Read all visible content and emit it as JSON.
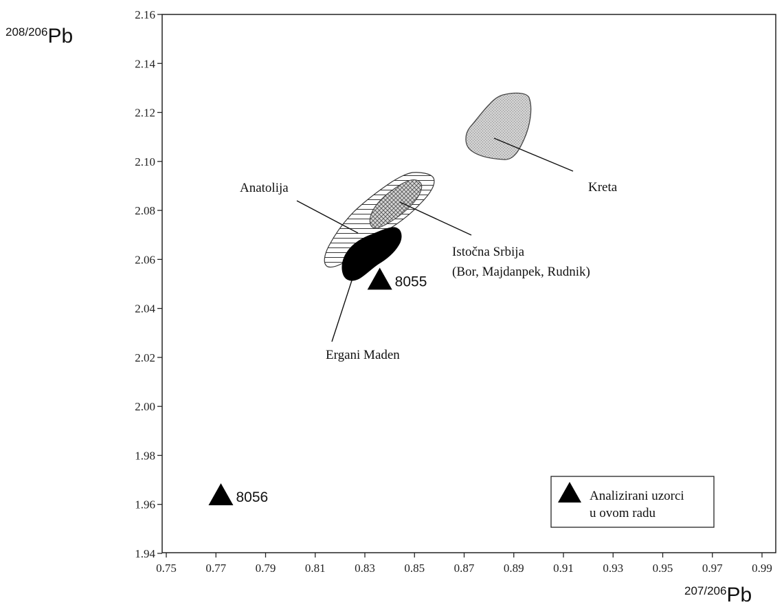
{
  "chart_data": {
    "type": "scatter",
    "title": "",
    "xlabel": {
      "sup": "207/206",
      "main": "Pb"
    },
    "ylabel": {
      "sup": "208/206",
      "main": "Pb"
    },
    "xlim": [
      0.75,
      1.0
    ],
    "ylim": [
      1.94,
      2.16
    ],
    "x_ticks": [
      "0.75",
      "0.77",
      "0.79",
      "0.81",
      "0.83",
      "0.85",
      "0.87",
      "0.89",
      "0.91",
      "0.93",
      "0.95",
      "0.97",
      "0.99"
    ],
    "y_ticks": [
      "1.94",
      "1.96",
      "1.98",
      "2.00",
      "2.02",
      "2.04",
      "2.06",
      "2.08",
      "2.10",
      "2.12",
      "2.14",
      "2.16"
    ],
    "grid": false,
    "points": [
      {
        "label": "8055",
        "x": 0.836,
        "y": 2.051
      },
      {
        "label": "8056",
        "x": 0.772,
        "y": 1.963
      }
    ],
    "fields": [
      {
        "name": "Kreta",
        "fill": "stipple-grey",
        "label_lines": [
          "Kreta"
        ]
      },
      {
        "name": "Anatolija",
        "fill": "horizontal-hatch",
        "label_lines": [
          "Anatolija"
        ]
      },
      {
        "name": "Istočna Srbija",
        "fill": "cross-hatch",
        "label_lines": [
          "Istočna Srbija",
          "(Bor, Majdanpek, Rudnik)"
        ]
      },
      {
        "name": "Ergani Maden",
        "fill": "solid-black",
        "label_lines": [
          "Ergani Maden"
        ]
      }
    ],
    "legend": {
      "position": "bottom-right",
      "marker": "filled-triangle",
      "lines": [
        "Analizirani uzorci",
        "u ovom radu"
      ]
    }
  }
}
